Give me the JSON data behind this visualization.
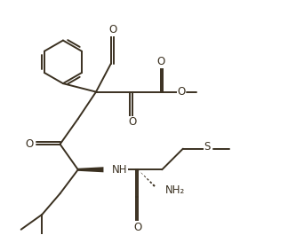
{
  "bg_color": "#ffffff",
  "line_color": "#3a3020",
  "line_width": 1.4,
  "font_size": 7.5,
  "figsize": [
    3.24,
    2.65
  ],
  "dpi": 100,
  "xlim": [
    0,
    9.5
  ],
  "ylim": [
    0,
    7.8
  ]
}
